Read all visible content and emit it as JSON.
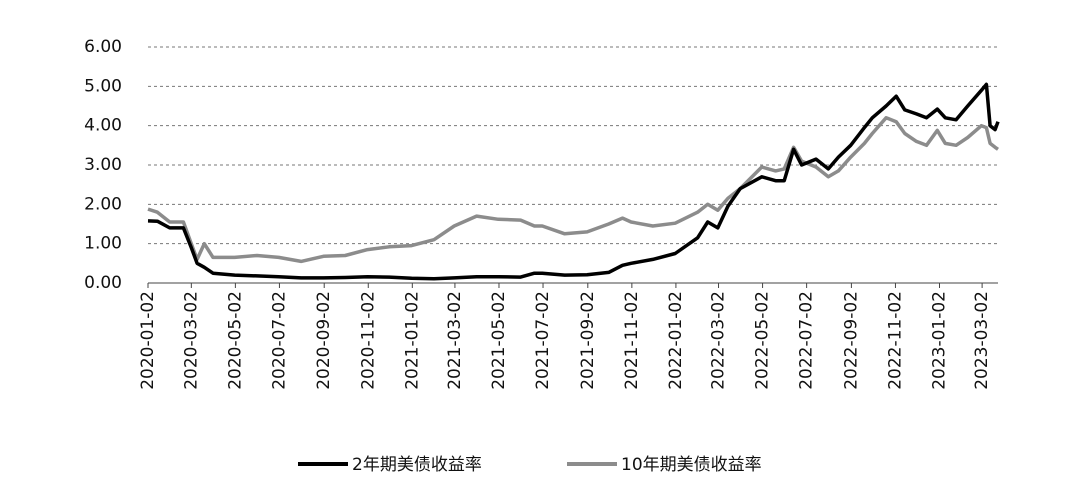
{
  "chart_data": {
    "type": "line",
    "x": [
      "2020-01-02",
      "2020-01-15",
      "2020-02-01",
      "2020-02-20",
      "2020-03-02",
      "2020-03-10",
      "2020-03-20",
      "2020-04-01",
      "2020-05-01",
      "2020-06-01",
      "2020-07-01",
      "2020-08-01",
      "2020-09-01",
      "2020-10-01",
      "2020-11-01",
      "2020-12-01",
      "2021-01-01",
      "2021-02-01",
      "2021-03-01",
      "2021-04-01",
      "2021-05-01",
      "2021-06-01",
      "2021-06-20",
      "2021-07-01",
      "2021-08-01",
      "2021-09-01",
      "2021-10-01",
      "2021-10-20",
      "2021-11-01",
      "2021-12-01",
      "2022-01-01",
      "2022-02-01",
      "2022-02-15",
      "2022-03-01",
      "2022-03-15",
      "2022-04-01",
      "2022-05-01",
      "2022-05-20",
      "2022-06-01",
      "2022-06-14",
      "2022-06-25",
      "2022-07-15",
      "2022-08-01",
      "2022-08-15",
      "2022-09-01",
      "2022-09-20",
      "2022-10-01",
      "2022-10-20",
      "2022-11-03",
      "2022-11-15",
      "2022-12-01",
      "2022-12-15",
      "2022-12-30",
      "2023-01-10",
      "2023-01-25",
      "2023-02-10",
      "2023-03-01",
      "2023-03-08",
      "2023-03-13",
      "2023-03-20",
      "2023-03-24"
    ],
    "series": [
      {
        "name": "2年期美债收益率",
        "color": "#000000",
        "values": [
          1.58,
          1.57,
          1.4,
          1.4,
          0.9,
          0.5,
          0.4,
          0.25,
          0.2,
          0.18,
          0.16,
          0.13,
          0.13,
          0.14,
          0.16,
          0.15,
          0.12,
          0.11,
          0.13,
          0.16,
          0.16,
          0.15,
          0.25,
          0.25,
          0.2,
          0.21,
          0.27,
          0.45,
          0.5,
          0.6,
          0.75,
          1.15,
          1.55,
          1.4,
          1.95,
          2.4,
          2.7,
          2.6,
          2.6,
          3.4,
          3.0,
          3.15,
          2.9,
          3.2,
          3.5,
          3.95,
          4.2,
          4.5,
          4.75,
          4.4,
          4.3,
          4.2,
          4.42,
          4.2,
          4.15,
          4.5,
          4.9,
          5.05,
          4.0,
          3.9,
          4.1
        ]
      },
      {
        "name": "10年期美债收益率",
        "color": "#8c8c8c",
        "values": [
          1.88,
          1.8,
          1.55,
          1.55,
          1.0,
          0.6,
          1.0,
          0.65,
          0.65,
          0.7,
          0.65,
          0.55,
          0.68,
          0.7,
          0.85,
          0.92,
          0.95,
          1.1,
          1.45,
          1.7,
          1.62,
          1.6,
          1.45,
          1.45,
          1.25,
          1.3,
          1.5,
          1.65,
          1.55,
          1.45,
          1.52,
          1.8,
          2.0,
          1.85,
          2.15,
          2.4,
          2.95,
          2.85,
          2.9,
          3.45,
          3.1,
          2.95,
          2.7,
          2.85,
          3.2,
          3.55,
          3.8,
          4.2,
          4.1,
          3.8,
          3.6,
          3.5,
          3.88,
          3.55,
          3.5,
          3.7,
          4.0,
          3.95,
          3.55,
          3.45,
          3.4
        ]
      }
    ],
    "xlim": [
      "2020-01-02",
      "2023-03-24"
    ],
    "xticks": [
      "2020-01-02",
      "2020-03-02",
      "2020-05-02",
      "2020-07-02",
      "2020-09-02",
      "2020-11-02",
      "2021-01-02",
      "2021-03-02",
      "2021-05-02",
      "2021-07-02",
      "2021-09-02",
      "2021-11-02",
      "2022-01-02",
      "2022-03-02",
      "2022-05-02",
      "2022-07-02",
      "2022-09-02",
      "2022-11-02",
      "2023-01-02",
      "2023-03-02"
    ],
    "ylim": [
      0,
      6
    ],
    "yticks": [
      {
        "value": 0,
        "label": "0.00"
      },
      {
        "value": 1,
        "label": "1.00"
      },
      {
        "value": 2,
        "label": "2.00"
      },
      {
        "value": 3,
        "label": "3.00"
      },
      {
        "value": 4,
        "label": "4.00"
      },
      {
        "value": 5,
        "label": "5.00"
      },
      {
        "value": 6,
        "label": "6.00"
      }
    ],
    "grid": true,
    "legend": "bottom"
  }
}
